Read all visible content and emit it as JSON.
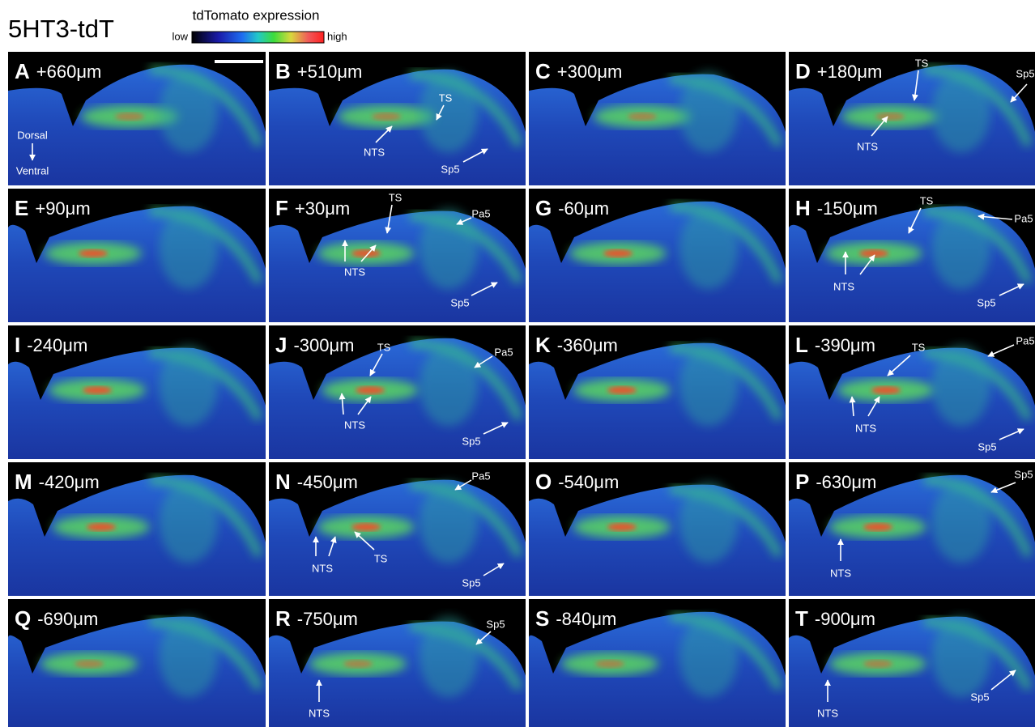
{
  "title": "5HT3-tdT",
  "legend": {
    "title": "tdTomato expression",
    "low": "low",
    "high": "high"
  },
  "panels": [
    {
      "letter": "A",
      "position": "+660μm",
      "annotations": [
        "Dorsal",
        "Ventral"
      ]
    },
    {
      "letter": "B",
      "position": "+510μm",
      "annotations": [
        "TS",
        "NTS",
        "Sp5"
      ]
    },
    {
      "letter": "C",
      "position": "+300μm",
      "annotations": []
    },
    {
      "letter": "D",
      "position": "+180μm",
      "annotations": [
        "TS",
        "NTS",
        "Sp5"
      ]
    },
    {
      "letter": "E",
      "position": "+90μm",
      "annotations": []
    },
    {
      "letter": "F",
      "position": "+30μm",
      "annotations": [
        "TS",
        "Pa5",
        "NTS",
        "Sp5"
      ]
    },
    {
      "letter": "G",
      "position": "-60μm",
      "annotations": []
    },
    {
      "letter": "H",
      "position": "-150μm",
      "annotations": [
        "TS",
        "Pa5",
        "NTS",
        "Sp5"
      ]
    },
    {
      "letter": "I",
      "position": "-240μm",
      "annotations": []
    },
    {
      "letter": "J",
      "position": "-300μm",
      "annotations": [
        "TS",
        "Pa5",
        "NTS",
        "Sp5"
      ]
    },
    {
      "letter": "K",
      "position": "-360μm",
      "annotations": []
    },
    {
      "letter": "L",
      "position": "-390μm",
      "annotations": [
        "TS",
        "Pa5",
        "NTS",
        "Sp5"
      ]
    },
    {
      "letter": "M",
      "position": "-420μm",
      "annotations": []
    },
    {
      "letter": "N",
      "position": "-450μm",
      "annotations": [
        "Pa5",
        "NTS",
        "TS",
        "Sp5"
      ]
    },
    {
      "letter": "O",
      "position": "-540μm",
      "annotations": []
    },
    {
      "letter": "P",
      "position": "-630μm",
      "annotations": [
        "Sp5",
        "NTS"
      ]
    },
    {
      "letter": "Q",
      "position": "-690μm",
      "annotations": []
    },
    {
      "letter": "R",
      "position": "-750μm",
      "annotations": [
        "Sp5",
        "NTS"
      ]
    },
    {
      "letter": "S",
      "position": "-840μm",
      "annotations": []
    },
    {
      "letter": "T",
      "position": "-900μm",
      "annotations": [
        "NTS",
        "Sp5"
      ]
    }
  ]
}
